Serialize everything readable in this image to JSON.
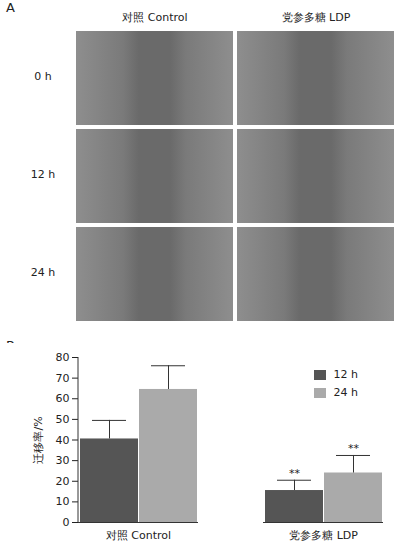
{
  "panel_a": {
    "label": "A",
    "columns": [
      "对照 Control",
      "党参多糖 LDP"
    ],
    "rows": [
      "0 h",
      "12 h",
      "24 h"
    ]
  },
  "chart_data": {
    "panel_label": "B",
    "type": "bar",
    "categories": [
      "对照 Control",
      "党参多糖 LDP"
    ],
    "series": [
      {
        "name": "12 h",
        "color": "#555555",
        "values": [
          40.5,
          15.5
        ],
        "errors": [
          9,
          5
        ]
      },
      {
        "name": "24 h",
        "color": "#aaaaaa",
        "values": [
          64.5,
          24
        ],
        "errors": [
          11.5,
          8.5
        ]
      }
    ],
    "ylabel": "迁移率/%",
    "ylim": [
      0,
      80
    ],
    "yticks": [
      0,
      10,
      20,
      30,
      40,
      50,
      60,
      70,
      80
    ],
    "legend": "top-right",
    "annotations": [
      {
        "category": "党参多糖 LDP",
        "series": "12 h",
        "text": "**"
      },
      {
        "category": "党参多糖 LDP",
        "series": "24 h",
        "text": "**"
      }
    ]
  }
}
